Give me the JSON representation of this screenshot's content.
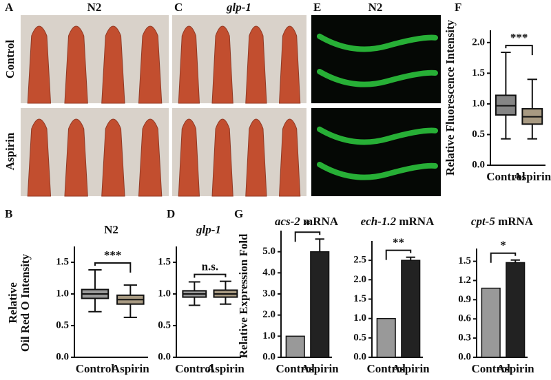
{
  "images": {
    "row_labels": [
      "Control",
      "Aspirin"
    ],
    "panels": [
      {
        "label": "A",
        "title": "N2"
      },
      {
        "label": "C",
        "title": "glp-1"
      },
      {
        "label": "E",
        "title": "N2"
      }
    ]
  },
  "chart_data": [
    {
      "type": "box",
      "label": "F",
      "ylabel": [
        "Relative Fluorescence Intensity"
      ],
      "significance": "***",
      "categories": [
        "Control",
        "Aspirin"
      ],
      "boxes": [
        {
          "color": "#858585",
          "min": 0.43,
          "q1": 0.82,
          "median": 0.97,
          "q3": 1.14,
          "max": 1.84
        },
        {
          "color": "#a89a82",
          "min": 0.43,
          "q1": 0.67,
          "median": 0.79,
          "q3": 0.92,
          "max": 1.4
        }
      ],
      "ylim": [
        0,
        2.2
      ],
      "yticks": [
        {
          "value": 0,
          "label": "0.0"
        },
        0.5,
        {
          "value": 1,
          "label": "1.0"
        },
        1.5,
        {
          "value": 2,
          "label": "2.0"
        }
      ]
    },
    {
      "type": "box",
      "label": "B",
      "title": "N2",
      "ylabel": [
        "Relative",
        "Oil Red O Intensity"
      ],
      "significance": "***",
      "categories": [
        "Control",
        "Aspirin"
      ],
      "boxes": [
        {
          "color": "#9a9a9a",
          "min": 0.72,
          "q1": 0.93,
          "median": 1.0,
          "q3": 1.07,
          "max": 1.38
        },
        {
          "color": "#a89a82",
          "min": 0.63,
          "q1": 0.84,
          "median": 0.91,
          "q3": 0.98,
          "max": 1.14
        }
      ],
      "ylim": [
        0,
        1.75
      ],
      "yticks": [
        {
          "value": 0,
          "label": "0.0"
        },
        0.5,
        {
          "value": 1,
          "label": "1.0"
        },
        1.5
      ]
    },
    {
      "type": "box",
      "label": "D",
      "title": "glp-1",
      "title_italic": true,
      "significance": "n.s.",
      "categories": [
        "Control",
        "Aspirin"
      ],
      "boxes": [
        {
          "color": "#9a9a9a",
          "min": 0.82,
          "q1": 0.95,
          "median": 1.0,
          "q3": 1.05,
          "max": 1.19
        },
        {
          "color": "#a89a82",
          "min": 0.84,
          "q1": 0.95,
          "median": 1.0,
          "q3": 1.06,
          "max": 1.2
        }
      ],
      "ylim": [
        0,
        1.75
      ],
      "yticks": [
        {
          "value": 0,
          "label": "0.0"
        },
        0.5,
        {
          "value": 1,
          "label": "1.0"
        },
        1.5
      ]
    },
    {
      "type": "bar",
      "label": "G",
      "title": [
        "acs-2",
        "mRNA"
      ],
      "ylabel": [
        "Relative Expression Fold"
      ],
      "significance": "*",
      "categories": [
        "Control",
        "Aspirin"
      ],
      "values": [
        1.0,
        5.0
      ],
      "errors": [
        0,
        0.6
      ],
      "colors": [
        "#999999",
        "#222222"
      ],
      "ylim": [
        0,
        6
      ],
      "yticks": [
        {
          "value": 0,
          "label": "0.0"
        },
        {
          "value": 1,
          "label": "1.0"
        },
        {
          "value": 2,
          "label": "2.0"
        },
        {
          "value": 3,
          "label": "3.0"
        },
        {
          "value": 4,
          "label": "4.0"
        },
        {
          "value": 5,
          "label": "5.0"
        }
      ]
    },
    {
      "type": "bar",
      "title": [
        "ech-1.2",
        "mRNA"
      ],
      "significance": "**",
      "categories": [
        "Control",
        "Aspirin"
      ],
      "values": [
        1.0,
        2.5
      ],
      "errors": [
        0,
        0.08
      ],
      "colors": [
        "#999999",
        "#222222"
      ],
      "ylim": [
        0,
        3.0
      ],
      "yticks": [
        {
          "value": 0,
          "label": "0.0"
        },
        0.5,
        {
          "value": 1,
          "label": "1.0"
        },
        1.5,
        {
          "value": 2,
          "label": "2.0"
        },
        2.5
      ]
    },
    {
      "type": "bar",
      "title": [
        "cpt-5",
        "mRNA"
      ],
      "significance": "*",
      "categories": [
        "Control",
        "Aspirin"
      ],
      "values": [
        1.08,
        1.48
      ],
      "errors": [
        0,
        0.04
      ],
      "colors": [
        "#999999",
        "#222222"
      ],
      "ylim": [
        0,
        1.7
      ],
      "yticks": [
        {
          "value": 0,
          "label": "0.0"
        },
        0.3,
        0.6,
        0.9,
        1.2,
        1.5
      ]
    }
  ]
}
